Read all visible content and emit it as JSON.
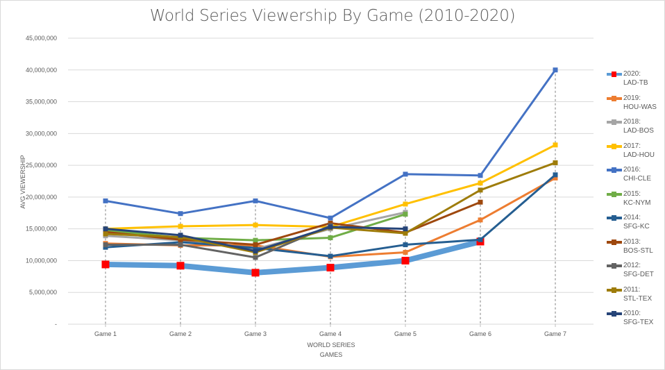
{
  "chart_data": {
    "type": "line",
    "title": "World Series Viewership By Game (2010-2020)",
    "xlabel": "WORLD SERIES GAMES",
    "ylabel": "AVG VIEWERSHIP",
    "ylim": [
      0,
      45000000
    ],
    "yticks": [
      "-",
      "5,000,000",
      "10,000,000",
      "15,000,000",
      "20,000,000",
      "25,000,000",
      "30,000,000",
      "35,000,000",
      "40,000,000",
      "45,000,000"
    ],
    "categories": [
      "Game 1",
      "Game 2",
      "Game 3",
      "Game 4",
      "Game 5",
      "Game 6",
      "Game 7"
    ],
    "grid": true,
    "legend_position": "right",
    "series": [
      {
        "name": "2010: SFG-TEX",
        "label_year": "2010:",
        "label_teams": "SFG-TEX",
        "color": "#264478",
        "values": [
          15000000,
          14000000,
          11500000,
          15300000,
          15000000,
          null,
          null
        ]
      },
      {
        "name": "2011: STL-TEX",
        "label_year": "2011:",
        "label_teams": "STL-TEX",
        "color": "#9E7C0A",
        "values": [
          14200000,
          13700000,
          11300000,
          15200000,
          14300000,
          21100000,
          25400000
        ]
      },
      {
        "name": "2012: SFG-DET",
        "label_year": "2012:",
        "label_teams": "SFG-DET",
        "color": "#636363",
        "values": [
          12500000,
          12500000,
          10500000,
          15500000,
          null,
          null,
          null
        ]
      },
      {
        "name": "2013: BOS-STL",
        "label_year": "2013:",
        "label_teams": "BOS-STL",
        "color": "#9E480E",
        "values": [
          14500000,
          13300000,
          12500000,
          15900000,
          14400000,
          19200000,
          null
        ]
      },
      {
        "name": "2014: SFG-KC",
        "label_year": "2014:",
        "label_teams": "SFG-KC",
        "color": "#255E91",
        "values": [
          12100000,
          12900000,
          12000000,
          10700000,
          12500000,
          13300000,
          23500000
        ]
      },
      {
        "name": "2015: KC-NYM",
        "label_year": "2015:",
        "label_teams": "KC-NYM",
        "color": "#70AD47",
        "values": [
          14800000,
          13600000,
          13200000,
          13600000,
          17300000,
          null,
          null
        ]
      },
      {
        "name": "2016: CHI-CLE",
        "label_year": "2016:",
        "label_teams": "CHI-CLE",
        "color": "#4472C4",
        "values": [
          19400000,
          17400000,
          19400000,
          16700000,
          23600000,
          23400000,
          40000000
        ]
      },
      {
        "name": "2017: LAD-HOU",
        "label_year": "2017:",
        "label_teams": "LAD-HOU",
        "color": "#FFC000",
        "values": [
          15000000,
          15400000,
          15600000,
          15300000,
          18900000,
          22200000,
          28200000
        ]
      },
      {
        "name": "2018: LAD-BOS",
        "label_year": "2018:",
        "label_teams": "LAD-BOS",
        "color": "#A5A5A5",
        "values": [
          13900000,
          13200000,
          11800000,
          15000000,
          17600000,
          null,
          null
        ]
      },
      {
        "name": "2019: HOU-WAS",
        "label_year": "2019:",
        "label_teams": "HOU-WAS",
        "color": "#ED7D31",
        "values": [
          12700000,
          12400000,
          12400000,
          10600000,
          11300000,
          16400000,
          23000000
        ]
      },
      {
        "name": "2020: LAD-TB",
        "label_year": "2020:",
        "label_teams": "LAD-TB",
        "color": "#5B9BD5",
        "marker_color": "#FF0000",
        "values": [
          9400000,
          9200000,
          8100000,
          8900000,
          10000000,
          13000000,
          null
        ]
      }
    ]
  }
}
